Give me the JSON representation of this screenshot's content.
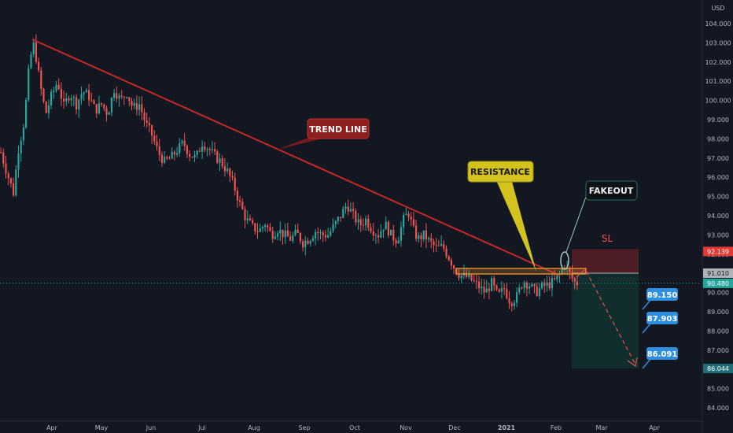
{
  "currency": "USD",
  "chart_data": {
    "type": "candlestick",
    "title": "",
    "xlabel": "",
    "ylabel": "",
    "ylim": [
      83.6,
      105.0
    ],
    "grid": false,
    "x_ticks": [
      "Apr",
      "May",
      "Jun",
      "Jul",
      "Aug",
      "Sep",
      "Oct",
      "Nov",
      "Dec",
      "2021",
      "Feb",
      "Mar",
      "Apr"
    ],
    "y_ticks": [
      "84.000",
      "85.000",
      "86.000",
      "87.000",
      "88.000",
      "89.000",
      "90.000",
      "91.000",
      "92.000",
      "93.000",
      "94.000",
      "95.000",
      "96.000",
      "97.000",
      "98.000",
      "99.000",
      "100.000",
      "101.000",
      "102.000",
      "103.000",
      "104.000"
    ],
    "close_path": [
      [
        0,
        97.3
      ],
      [
        8,
        96.2
      ],
      [
        16,
        95.2
      ],
      [
        22,
        97.4
      ],
      [
        30,
        99.0
      ],
      [
        36,
        101.8
      ],
      [
        41,
        103.0
      ],
      [
        45,
        102.2
      ],
      [
        50,
        100.8
      ],
      [
        57,
        99.3
      ],
      [
        64,
        100.2
      ],
      [
        72,
        101.0
      ],
      [
        80,
        99.7
      ],
      [
        88,
        100.4
      ],
      [
        96,
        99.8
      ],
      [
        104,
        100.5
      ],
      [
        112,
        100.2
      ],
      [
        120,
        99.5
      ],
      [
        128,
        99.8
      ],
      [
        136,
        99.3
      ],
      [
        144,
        100.6
      ],
      [
        152,
        100.0
      ],
      [
        160,
        100.4
      ],
      [
        168,
        99.6
      ],
      [
        176,
        99.8
      ],
      [
        184,
        98.8
      ],
      [
        192,
        98.2
      ],
      [
        200,
        97.3
      ],
      [
        208,
        96.8
      ],
      [
        216,
        97.0
      ],
      [
        224,
        97.4
      ],
      [
        232,
        97.8
      ],
      [
        240,
        97.2
      ],
      [
        248,
        97.0
      ],
      [
        256,
        97.8
      ],
      [
        264,
        97.5
      ],
      [
        272,
        97.1
      ],
      [
        280,
        96.8
      ],
      [
        288,
        96.3
      ],
      [
        296,
        95.6
      ],
      [
        304,
        94.6
      ],
      [
        312,
        93.8
      ],
      [
        320,
        93.4
      ],
      [
        328,
        93.2
      ],
      [
        336,
        93.6
      ],
      [
        344,
        93.0
      ],
      [
        352,
        93.3
      ],
      [
        360,
        93.0
      ],
      [
        368,
        92.8
      ],
      [
        376,
        93.1
      ],
      [
        384,
        92.6
      ],
      [
        392,
        92.8
      ],
      [
        400,
        93.2
      ],
      [
        408,
        93.0
      ],
      [
        416,
        93.0
      ],
      [
        424,
        93.5
      ],
      [
        432,
        94.0
      ],
      [
        440,
        94.6
      ],
      [
        448,
        94.0
      ],
      [
        456,
        93.5
      ],
      [
        464,
        93.8
      ],
      [
        472,
        93.3
      ],
      [
        480,
        93.0
      ],
      [
        488,
        93.6
      ],
      [
        496,
        93.0
      ],
      [
        504,
        92.7
      ],
      [
        512,
        93.8
      ],
      [
        518,
        94.2
      ],
      [
        524,
        93.3
      ],
      [
        530,
        92.8
      ],
      [
        538,
        93.0
      ],
      [
        546,
        92.6
      ],
      [
        554,
        92.3
      ],
      [
        562,
        92.4
      ],
      [
        570,
        91.8
      ],
      [
        578,
        91.2
      ],
      [
        584,
        90.9
      ],
      [
        592,
        90.8
      ],
      [
        600,
        90.6
      ],
      [
        608,
        90.3
      ],
      [
        616,
        90.0
      ],
      [
        624,
        90.5
      ],
      [
        632,
        89.8
      ],
      [
        640,
        90.2
      ],
      [
        648,
        89.5
      ],
      [
        656,
        89.8
      ],
      [
        664,
        90.6
      ],
      [
        672,
        90.4
      ],
      [
        680,
        90.0
      ],
      [
        688,
        90.3
      ],
      [
        696,
        90.4
      ],
      [
        704,
        90.6
      ],
      [
        710,
        90.9
      ],
      [
        716,
        91.5
      ],
      [
        720,
        91.2
      ],
      [
        724,
        90.9
      ],
      [
        730,
        90.5
      ],
      [
        736,
        90.48
      ]
    ],
    "levels": {
      "current_price": "90.480",
      "entry": "91.010",
      "stop_loss": "92.139",
      "targets": [
        "89.150",
        "87.903",
        "86.091"
      ],
      "lowest_target": "86.044"
    },
    "annotations": {
      "trend_line": "TREND LINE",
      "resistance": "RESISTANCE",
      "fakeout": "FAKEOUT",
      "stop_loss": "SL"
    },
    "colors": {
      "background": "#131722",
      "up": "#26a69a",
      "down": "#ef5350",
      "trend_line": "#c62828",
      "resistance": "#e08a2a",
      "resistance_label": "#d4c31e",
      "fakeout_circle": "#9cc7c0",
      "stop_zone": "#5a1f27",
      "target_zone": "#12302f",
      "target_label": "#2e8ee0",
      "current_price_tag": "#26a69a",
      "stop_tag": "#e53935",
      "entry_tag": "#b0b3b9"
    }
  }
}
